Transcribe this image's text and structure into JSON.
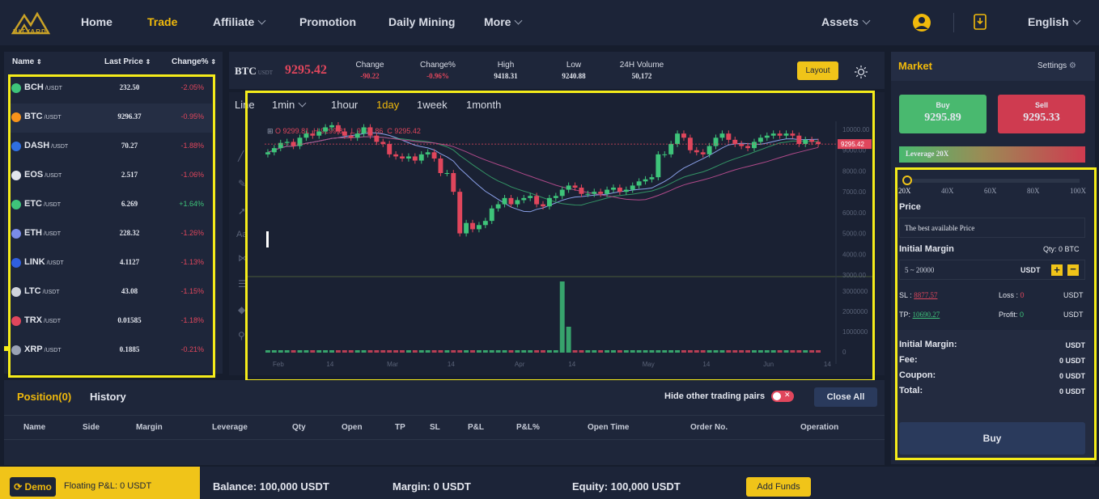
{
  "logo": {
    "text": "BITYARD"
  },
  "nav": {
    "home": "Home",
    "trade": "Trade",
    "affiliate": "Affiliate",
    "promotion": "Promotion",
    "daily_mining": "Daily Mining",
    "more": "More",
    "assets": "Assets",
    "language": "English"
  },
  "market_list": {
    "headers": {
      "name": "Name",
      "last_price": "Last Price",
      "change": "Change%"
    },
    "quote": "/USDT",
    "rows": [
      {
        "name": "BCH",
        "price": "232.50",
        "change": "-2.05%",
        "dir": "down",
        "color": "#3ec47a"
      },
      {
        "name": "BTC",
        "price": "9296.37",
        "change": "-0.95%",
        "dir": "down",
        "color": "#f7931a"
      },
      {
        "name": "DASH",
        "price": "70.27",
        "change": "-1.88%",
        "dir": "down",
        "color": "#2f6fe0"
      },
      {
        "name": "EOS",
        "price": "2.517",
        "change": "-1.06%",
        "dir": "down",
        "color": "#e3e6ee"
      },
      {
        "name": "ETC",
        "price": "6.269",
        "change": "+1.64%",
        "dir": "up",
        "color": "#3ec47a"
      },
      {
        "name": "ETH",
        "price": "228.32",
        "change": "-1.26%",
        "dir": "down",
        "color": "#7a8ce8"
      },
      {
        "name": "LINK",
        "price": "4.1127",
        "change": "-1.13%",
        "dir": "down",
        "color": "#2f5fe0"
      },
      {
        "name": "LTC",
        "price": "43.08",
        "change": "-1.15%",
        "dir": "down",
        "color": "#cfd3dc"
      },
      {
        "name": "TRX",
        "price": "0.01585",
        "change": "-1.18%",
        "dir": "down",
        "color": "#e0465c"
      },
      {
        "name": "XRP",
        "price": "0.1885",
        "change": "-0.21%",
        "dir": "down",
        "color": "#9aa2b5"
      }
    ]
  },
  "ticker": {
    "symbol": "BTC",
    "quote": "USDT",
    "price": "9295.42",
    "change_label": "Change",
    "change": "-90.22",
    "change_pct_label": "Change%",
    "change_pct": "-0.96%",
    "high_label": "High",
    "high": "9418.31",
    "low_label": "Low",
    "low": "9240.88",
    "volume_label": "24H Volume",
    "volume": "50,172",
    "layout_btn": "Layout"
  },
  "chart_toolbar": {
    "line": "Line",
    "min1": "1min",
    "hour1": "1hour",
    "day1": "1day",
    "week1": "1week",
    "month1": "1month",
    "active": "1day"
  },
  "chart_legend": {
    "o": "O 9299.81",
    "h": "H 9299.81",
    "l": "L 9294.86",
    "c": "C 9295.42"
  },
  "chart_data": {
    "type": "candlestick",
    "last_price_label": "9295.42",
    "y_ticks": [
      "10000.00",
      "9000.00",
      "8000.00",
      "7000.00",
      "6000.00",
      "5000.00",
      "4000.00",
      "3000.00"
    ],
    "ylim": [
      3000,
      10000
    ],
    "volume_ticks": [
      "3000000",
      "2000000",
      "1000000",
      "0"
    ],
    "x_ticks": [
      "Feb",
      "14",
      "Mar",
      "14",
      "Apr",
      "14",
      "May",
      "14",
      "Jun",
      "14"
    ],
    "closes": [
      8900,
      9100,
      9350,
      9400,
      9200,
      9600,
      9800,
      9700,
      9900,
      10100,
      10200,
      9900,
      9700,
      9600,
      9800,
      10100,
      9700,
      9400,
      9300,
      8800,
      8700,
      8600,
      8700,
      8500,
      8800,
      8900,
      8600,
      7900,
      7900,
      7000,
      5000,
      5500,
      5200,
      5400,
      5600,
      6200,
      6400,
      6700,
      6400,
      6600,
      6700,
      6800,
      6400,
      6300,
      6700,
      6800,
      7100,
      7300,
      7200,
      6900,
      6900,
      7000,
      6900,
      7100,
      7200,
      7000,
      7100,
      7300,
      7500,
      7600,
      7700,
      8800,
      8800,
      9300,
      9800,
      9600,
      9000,
      8900,
      8800,
      9200,
      9600,
      9800,
      9500,
      9300,
      9200,
      9100,
      9400,
      9600,
      9700,
      9800,
      9700,
      9800,
      9700,
      9300,
      9500,
      9400,
      9295
    ]
  },
  "market_panel": {
    "title": "Market",
    "settings": "Settings",
    "buy_label": "Buy",
    "buy_price": "9295.89",
    "sell_label": "Sell",
    "sell_price": "9295.33",
    "leverage": "Leverage 20X",
    "leverage_ticks": [
      "20X",
      "40X",
      "60X",
      "80X",
      "100X"
    ],
    "leverage_value": 0.0,
    "price_label": "Price",
    "price_value": "The best available Price",
    "initial_margin_label": "Initial Margin",
    "qty": "Qty: 0 BTC",
    "margin_placeholder": "5 ~ 20000",
    "margin_unit": "USDT",
    "sl_label": "SL :",
    "sl_value": "8877.57",
    "loss_label": "Loss :",
    "loss_value": "0",
    "sl_unit": "USDT",
    "tp_label": "TP:",
    "tp_value": "10690.27",
    "profit_label": "Profit:",
    "profit_value": "0",
    "tp_unit": "USDT",
    "summary": [
      {
        "label": "Initial Margin:",
        "value": "USDT"
      },
      {
        "label": "Fee:",
        "value": "0 USDT"
      },
      {
        "label": "Coupon:",
        "value": "0 USDT"
      },
      {
        "label": "Total:",
        "value": "0 USDT"
      }
    ],
    "buy_button": "Buy"
  },
  "positions": {
    "tab_position": "Position(0)",
    "tab_history": "History",
    "hide_pairs": "Hide other trading pairs",
    "close_all": "Close All",
    "columns": [
      "Name",
      "Side",
      "Margin",
      "Leverage",
      "Qty",
      "Open",
      "TP",
      "SL",
      "P&L",
      "P&L%",
      "Open Time",
      "Order No.",
      "Operation"
    ]
  },
  "footer": {
    "demo": "Demo",
    "floating": "Floating P&L: 0 USDT",
    "balance": "Balance: 100,000 USDT",
    "margin": "Margin: 0 USDT",
    "equity": "Equity: 100,000 USDT",
    "add_funds": "Add Funds"
  },
  "colors": {
    "accent": "#f0b90b",
    "up": "#3ec47a",
    "down": "#e0465c",
    "highlight": "#f5ec1a"
  }
}
